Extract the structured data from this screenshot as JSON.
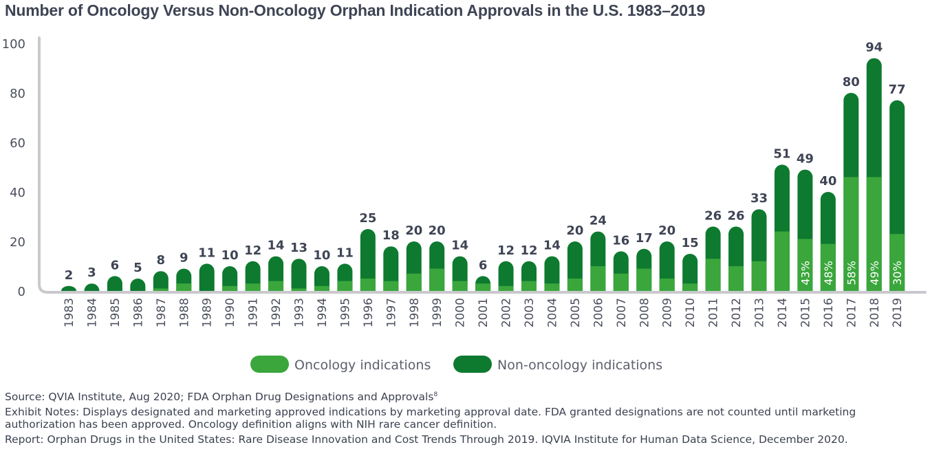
{
  "title": "Number of Oncology Versus Non-Oncology Orphan Indication Approvals in the U.S. 1983–2019",
  "colors": {
    "oncology": "#3aa63c",
    "non_oncology": "#0d7a2f",
    "axis": "#c9c9cd",
    "text": "#3e4454"
  },
  "chart_data": {
    "type": "bar",
    "stacked": true,
    "title": "Number of Oncology Versus Non-Oncology Orphan Indication Approvals in the U.S. 1983–2019",
    "categories": [
      "1983",
      "1984",
      "1985",
      "1986",
      "1987",
      "1988",
      "1989",
      "1990",
      "1991",
      "1992",
      "1993",
      "1994",
      "1995",
      "1996",
      "1997",
      "1998",
      "1999",
      "2000",
      "2001",
      "2002",
      "2003",
      "2004",
      "2005",
      "2006",
      "2007",
      "2008",
      "2009",
      "2010",
      "2011",
      "2012",
      "2013",
      "2014",
      "2015",
      "2016",
      "2017",
      "2018",
      "2019"
    ],
    "series": [
      {
        "name": "Oncology indications",
        "values": [
          0,
          0,
          0,
          0,
          1,
          3,
          0,
          2,
          3,
          4,
          1,
          2,
          4,
          5,
          4,
          7,
          9,
          4,
          3,
          2,
          4,
          3,
          5,
          10,
          7,
          9,
          5,
          3,
          13,
          10,
          12,
          24,
          21,
          19,
          46,
          46,
          23
        ]
      },
      {
        "name": "Non-oncology indications",
        "values": [
          2,
          3,
          6,
          5,
          7,
          6,
          11,
          8,
          9,
          10,
          12,
          8,
          7,
          20,
          14,
          13,
          11,
          10,
          3,
          10,
          8,
          11,
          15,
          14,
          9,
          8,
          15,
          12,
          13,
          16,
          21,
          27,
          28,
          21,
          34,
          48,
          54
        ]
      }
    ],
    "totals": [
      2,
      3,
      6,
      5,
      8,
      9,
      11,
      10,
      12,
      14,
      13,
      10,
      11,
      25,
      18,
      20,
      20,
      14,
      6,
      12,
      12,
      14,
      20,
      24,
      16,
      17,
      20,
      15,
      26,
      26,
      33,
      51,
      49,
      40,
      80,
      94,
      77
    ],
    "percent_labels": [
      {
        "category": "2015",
        "label": "43%"
      },
      {
        "category": "2016",
        "label": "48%"
      },
      {
        "category": "2017",
        "label": "58%"
      },
      {
        "category": "2018",
        "label": "49%"
      },
      {
        "category": "2019",
        "label": "30%"
      }
    ],
    "xlabel": "",
    "ylabel": "",
    "ylim": [
      0,
      100
    ],
    "yticks": [
      0,
      20,
      40,
      60,
      80,
      100
    ],
    "grid": false,
    "legend_position": "bottom-center"
  },
  "notes": {
    "source": "Source: QVIA Institute, Aug 2020; FDA Orphan Drug Designations and Approvals",
    "source_ref": "8",
    "exhibit": "Exhibit Notes: Displays designated and marketing approved indications by marketing approval date. FDA granted designations are not counted until marketing authorization has been approved. Oncology definition aligns with NIH rare cancer definition.",
    "report": "Report: Orphan Drugs in the United States: Rare Disease Innovation and Cost Trends Through 2019. IQVIA Institute for Human Data Science, December 2020."
  }
}
